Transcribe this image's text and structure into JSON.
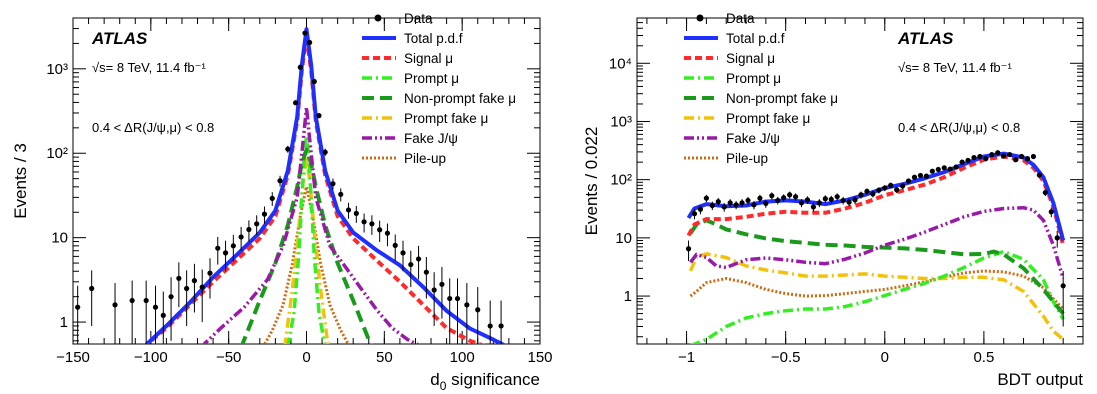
{
  "chart_data": [
    {
      "type": "line",
      "experiment": "ATLAS",
      "energy_lumi": "√s= 8 TeV, 11.4 fb⁻¹",
      "cut_label": "0.4 < ΔR(J/ψ,μ) < 0.8",
      "xlabel": "d0 significance",
      "ylabel": "Events / 3",
      "xlim": [
        -150,
        150
      ],
      "ylim": [
        0.55,
        4000
      ],
      "y_scale": "log",
      "x_ticks": [
        "−150",
        "−100",
        "−50",
        "0",
        "50",
        "100",
        "150"
      ],
      "y_ticks": [
        {
          "value": 1,
          "label": "1"
        },
        {
          "value": 10,
          "label": "10"
        },
        {
          "value": 100,
          "label": "10²"
        },
        {
          "value": 1000,
          "label": "10³"
        }
      ],
      "legend_position": "top-right",
      "legend": [
        {
          "key": "data",
          "label": "Data",
          "style": "marker",
          "color": "#000000"
        },
        {
          "key": "total",
          "label": "Total p.d.f",
          "style": "solid",
          "color": "#1f2fff"
        },
        {
          "key": "signal",
          "label": "Signal μ",
          "style": "dashed",
          "color": "#ff2a2a"
        },
        {
          "key": "prompt",
          "label": "Prompt μ",
          "style": "dashdot",
          "color": "#33ee22"
        },
        {
          "key": "nonprompt",
          "label": "Non-prompt fake μ",
          "style": "longdash",
          "color": "#1a9a1a"
        },
        {
          "key": "promptfake",
          "label": "Prompt fake μ",
          "style": "dashdot",
          "color": "#f2c20a"
        },
        {
          "key": "fakejpsi",
          "label": "Fake J/ψ",
          "style": "dashdotdot",
          "color": "#9a1aa8"
        },
        {
          "key": "pileup",
          "label": "Pile-up",
          "style": "dotted",
          "color": "#cc6a10"
        }
      ],
      "data": {
        "x": [
          -147,
          -138,
          -123,
          -112,
          -103,
          -97,
          -92,
          -87,
          -82,
          -77,
          -72,
          -67,
          -62,
          -57,
          -52,
          -47,
          -42,
          -37,
          -32,
          -27,
          -22,
          -17,
          -12,
          -7,
          -4,
          -1,
          2,
          5,
          8,
          12,
          17,
          22,
          27,
          32,
          37,
          42,
          47,
          52,
          57,
          62,
          67,
          72,
          77,
          82,
          87,
          92,
          97,
          103,
          110,
          118,
          125
        ],
        "y": [
          1.5,
          2.5,
          1.6,
          1.8,
          1.8,
          1.5,
          1.2,
          2,
          3.3,
          2.5,
          3.1,
          2.6,
          3.8,
          7.5,
          6.6,
          8,
          10.2,
          12.5,
          14.6,
          19,
          29.2,
          47.2,
          112,
          396,
          1043,
          2653,
          2050,
          708,
          279,
          103,
          43.6,
          32.6,
          21.3,
          19.4,
          15.4,
          14.6,
          12.4,
          11.3,
          8.1,
          6.6,
          4.8,
          5.6,
          3.9,
          2.4,
          2.8,
          1.9,
          1.9,
          1.6,
          1.4,
          0.9,
          0.9
        ],
        "err": [
          1.2,
          1.6,
          1.3,
          1.3,
          1.3,
          1.2,
          1.1,
          1.4,
          1.8,
          1.6,
          1.8,
          1.6,
          1.9,
          2.7,
          2.6,
          2.8,
          3.2,
          3.5,
          3.8,
          4.4,
          5.4,
          6.9,
          10.6,
          19.9,
          32.3,
          51.5,
          45.3,
          26.6,
          16.7,
          10.1,
          6.6,
          5.7,
          4.6,
          4.4,
          3.9,
          3.8,
          3.5,
          3.4,
          2.8,
          2.6,
          2.2,
          2.4,
          2,
          1.5,
          1.7,
          1.4,
          1.4,
          1.3,
          1.2,
          0.9,
          0.9
        ]
      },
      "curves": {
        "total": {
          "x": [
            -105,
            -90,
            -75,
            -60,
            -45,
            -30,
            -20,
            -12,
            -6,
            -3,
            0,
            3,
            6,
            12,
            20,
            30,
            45,
            60,
            75,
            90,
            105,
            120,
            130
          ],
          "y": [
            0.5,
            0.9,
            1.7,
            3.4,
            6.2,
            11.5,
            21,
            62,
            270,
            1100,
            2950,
            1100,
            270,
            62,
            21,
            11.5,
            7.1,
            4.7,
            2.6,
            1.36,
            0.84,
            0.62,
            0.5
          ]
        },
        "signal": {
          "x": [
            -105,
            -90,
            -75,
            -60,
            -45,
            -30,
            -20,
            -12,
            -6,
            -3,
            0,
            3,
            6,
            12,
            20,
            30,
            45,
            60,
            75,
            90,
            105,
            120
          ],
          "y": [
            0.5,
            0.85,
            1.6,
            3,
            5.4,
            9.8,
            18,
            55,
            240,
            950,
            2500,
            950,
            240,
            55,
            18,
            9.8,
            5.4,
            3,
            1.6,
            0.85,
            0.6,
            0.48
          ]
        },
        "prompt": {
          "x": [
            -12,
            -8,
            -5,
            -3,
            -1.5,
            0,
            1.5,
            3,
            5,
            8,
            12
          ],
          "y": [
            0.5,
            1.3,
            6,
            28,
            90,
            160,
            90,
            28,
            6,
            1.3,
            0.5
          ]
        },
        "nonprompt": {
          "x": [
            -42,
            -30,
            -20,
            -12,
            -6,
            -3,
            0,
            3,
            6,
            12,
            20,
            30,
            42
          ],
          "y": [
            0.5,
            1.8,
            5,
            14,
            40,
            75,
            110,
            75,
            40,
            14,
            5,
            1.8,
            0.5
          ]
        },
        "promptfake": {
          "x": [
            -14,
            -9,
            -5,
            -2,
            0,
            2,
            5,
            9,
            14
          ],
          "y": [
            0.5,
            2.5,
            12,
            50,
            85,
            50,
            12,
            2.5,
            0.5
          ]
        },
        "fakejpsi": {
          "x": [
            -68,
            -55,
            -40,
            -25,
            -15,
            -6,
            -2,
            0,
            2,
            6,
            15,
            25,
            35,
            45,
            55,
            65,
            75
          ],
          "y": [
            0.5,
            0.85,
            1.5,
            3.2,
            8,
            30,
            150,
            350,
            150,
            30,
            8,
            4.5,
            2.5,
            1.4,
            0.85,
            0.62,
            0.5
          ]
        },
        "pileup": {
          "x": [
            -28,
            -22,
            -15,
            -9,
            -4,
            0,
            4,
            9,
            15,
            22,
            28
          ],
          "y": [
            0.5,
            0.8,
            1.6,
            5,
            18,
            40,
            18,
            5,
            1.6,
            0.8,
            0.5
          ]
        }
      }
    },
    {
      "type": "line",
      "experiment": "ATLAS",
      "energy_lumi": "√s= 8 TeV, 11.4 fb⁻¹",
      "cut_label": "0.4 < ΔR(J/ψ,μ) < 0.8",
      "xlabel": "BDT output",
      "ylabel": "Events / 0.022",
      "xlim": [
        -1.25,
        1.0
      ],
      "ylim": [
        0.15,
        60000
      ],
      "y_scale": "log",
      "x_ticks": [
        "−1",
        "−0.5",
        "0",
        "0.5"
      ],
      "x_tick_values": [
        -1,
        -0.5,
        0,
        0.5
      ],
      "y_ticks": [
        {
          "value": 1,
          "label": "1"
        },
        {
          "value": 10,
          "label": "10"
        },
        {
          "value": 100,
          "label": "10²"
        },
        {
          "value": 1000,
          "label": "10³"
        },
        {
          "value": 10000,
          "label": "10⁴"
        }
      ],
      "legend_position": "top-left",
      "legend": [
        {
          "key": "data",
          "label": "Data",
          "style": "marker",
          "color": "#000000"
        },
        {
          "key": "total",
          "label": "Total p.d.f",
          "style": "solid",
          "color": "#1f2fff"
        },
        {
          "key": "signal",
          "label": "Signal μ",
          "style": "dashed",
          "color": "#ff2a2a"
        },
        {
          "key": "prompt",
          "label": "Prompt μ",
          "style": "dashdot",
          "color": "#33ee22"
        },
        {
          "key": "nonprompt",
          "label": "Non-prompt fake μ",
          "style": "longdash",
          "color": "#1a9a1a"
        },
        {
          "key": "promptfake",
          "label": "Prompt fake μ",
          "style": "dashdot",
          "color": "#f2c20a"
        },
        {
          "key": "fakejpsi",
          "label": "Fake J/ψ",
          "style": "dashdotdot",
          "color": "#9a1aa8"
        },
        {
          "key": "pileup",
          "label": "Pile-up",
          "style": "dotted",
          "color": "#cc6a10"
        }
      ],
      "data": {
        "x": [
          -0.99,
          -0.96,
          -0.93,
          -0.9,
          -0.87,
          -0.84,
          -0.81,
          -0.78,
          -0.75,
          -0.72,
          -0.69,
          -0.66,
          -0.63,
          -0.6,
          -0.57,
          -0.54,
          -0.51,
          -0.48,
          -0.45,
          -0.42,
          -0.39,
          -0.36,
          -0.33,
          -0.3,
          -0.27,
          -0.24,
          -0.21,
          -0.18,
          -0.15,
          -0.12,
          -0.09,
          -0.06,
          -0.03,
          0,
          0.03,
          0.06,
          0.09,
          0.12,
          0.15,
          0.18,
          0.21,
          0.24,
          0.27,
          0.3,
          0.33,
          0.36,
          0.39,
          0.42,
          0.45,
          0.48,
          0.51,
          0.54,
          0.57,
          0.6,
          0.63,
          0.66,
          0.69,
          0.72,
          0.75,
          0.78,
          0.81,
          0.84,
          0.87,
          0.9
        ],
        "y": [
          6.5,
          26,
          31,
          48,
          36,
          42,
          34,
          40,
          37,
          40,
          44,
          37,
          48,
          39,
          53,
          44,
          49,
          55,
          51,
          40,
          45,
          34,
          40,
          47,
          46,
          51,
          44,
          41,
          45,
          55,
          63,
          57,
          66,
          72,
          80,
          67,
          78,
          95,
          110,
          118,
          115,
          140,
          150,
          160,
          152,
          165,
          200,
          215,
          240,
          250,
          230,
          270,
          290,
          255,
          270,
          220,
          250,
          230,
          250,
          120,
          60,
          28,
          10,
          1.5
        ],
        "err": [
          2.5,
          5.1,
          5.6,
          6.9,
          6,
          6.5,
          5.8,
          6.3,
          6.1,
          6.3,
          6.6,
          6.1,
          6.9,
          6.2,
          7.3,
          6.6,
          7,
          7.4,
          7.1,
          6.3,
          6.7,
          5.8,
          6.3,
          6.9,
          6.8,
          7.1,
          6.6,
          6.4,
          6.7,
          7.4,
          7.9,
          7.5,
          8.1,
          8.5,
          8.9,
          8.2,
          8.8,
          9.7,
          10.5,
          10.9,
          10.7,
          11.8,
          12.2,
          12.6,
          12.3,
          12.8,
          14.1,
          14.7,
          15.5,
          15.8,
          15.2,
          16.4,
          17,
          16,
          16.4,
          14.8,
          15.8,
          15.2,
          15.8,
          11,
          7.7,
          5.3,
          3.2,
          1.2
        ]
      },
      "curves": {
        "total": {
          "x": [
            -0.99,
            -0.96,
            -0.9,
            -0.8,
            -0.7,
            -0.6,
            -0.5,
            -0.4,
            -0.3,
            -0.2,
            -0.1,
            0,
            0.1,
            0.2,
            0.3,
            0.4,
            0.5,
            0.6,
            0.7,
            0.75,
            0.8,
            0.85,
            0.9
          ],
          "y": [
            22,
            32,
            38,
            35,
            36,
            42,
            44,
            42,
            38,
            44,
            55,
            72,
            85,
            105,
            135,
            185,
            250,
            280,
            240,
            180,
            110,
            40,
            9
          ]
        },
        "signal": {
          "x": [
            -0.99,
            -0.96,
            -0.9,
            -0.8,
            -0.7,
            -0.6,
            -0.5,
            -0.4,
            -0.3,
            -0.2,
            -0.1,
            0,
            0.1,
            0.2,
            0.3,
            0.4,
            0.5,
            0.6,
            0.7,
            0.75,
            0.8,
            0.85,
            0.9
          ],
          "y": [
            11,
            17,
            21,
            21,
            23,
            26,
            28,
            27,
            27,
            32,
            40,
            54,
            66,
            82,
            110,
            160,
            220,
            250,
            215,
            160,
            95,
            35,
            7.5
          ]
        },
        "prompt": {
          "x": [
            -0.98,
            -0.9,
            -0.8,
            -0.7,
            -0.6,
            -0.5,
            -0.4,
            -0.3,
            -0.2,
            -0.1,
            0,
            0.1,
            0.2,
            0.3,
            0.4,
            0.5,
            0.6,
            0.7,
            0.8,
            0.85,
            0.9
          ],
          "y": [
            0.14,
            0.18,
            0.3,
            0.42,
            0.5,
            0.56,
            0.6,
            0.6,
            0.66,
            0.8,
            1.02,
            1.3,
            1.65,
            2.2,
            3.1,
            4.5,
            5.8,
            4.3,
            1.9,
            0.8,
            0.4
          ]
        },
        "nonprompt": {
          "x": [
            -0.98,
            -0.95,
            -0.9,
            -0.85,
            -0.8,
            -0.7,
            -0.6,
            -0.5,
            -0.4,
            -0.3,
            -0.2,
            -0.1,
            0,
            0.1,
            0.2,
            0.3,
            0.4,
            0.5,
            0.55,
            0.6,
            0.7,
            0.8,
            0.85,
            0.9
          ],
          "y": [
            12,
            17,
            20,
            17,
            14,
            11.5,
            9.8,
            8.8,
            8.2,
            7.6,
            7.4,
            7,
            6.8,
            6.6,
            6.2,
            5.7,
            5.2,
            5.3,
            5.8,
            5.2,
            3,
            1.3,
            0.8,
            0.5
          ]
        },
        "promptfake": {
          "x": [
            -0.98,
            -0.95,
            -0.9,
            -0.8,
            -0.7,
            -0.6,
            -0.5,
            -0.4,
            -0.3,
            -0.2,
            -0.1,
            0,
            0.1,
            0.2,
            0.3,
            0.4,
            0.5,
            0.6,
            0.7,
            0.8,
            0.85,
            0.9
          ],
          "y": [
            2.7,
            4.7,
            5.3,
            4.6,
            3.3,
            2.8,
            2.5,
            2.2,
            2.2,
            2.3,
            2.4,
            2.2,
            2.1,
            2,
            2,
            2.1,
            2.1,
            1.9,
            1.2,
            0.45,
            0.25,
            0.18
          ]
        },
        "fakejpsi": {
          "x": [
            -0.98,
            -0.95,
            -0.9,
            -0.85,
            -0.8,
            -0.7,
            -0.6,
            -0.5,
            -0.4,
            -0.3,
            -0.2,
            -0.1,
            0,
            0.1,
            0.2,
            0.3,
            0.4,
            0.5,
            0.6,
            0.7,
            0.75,
            0.8,
            0.85,
            0.9
          ],
          "y": [
            3.8,
            5.2,
            4.6,
            3.3,
            3.1,
            4.2,
            4.5,
            4.2,
            3.8,
            3.6,
            4.3,
            5.5,
            7.5,
            9.5,
            12.5,
            17,
            23,
            28.5,
            32,
            33,
            30,
            20,
            7.5,
            2
          ]
        },
        "pileup": {
          "x": [
            -0.98,
            -0.95,
            -0.9,
            -0.8,
            -0.7,
            -0.6,
            -0.5,
            -0.4,
            -0.3,
            -0.2,
            -0.1,
            0,
            0.1,
            0.2,
            0.3,
            0.4,
            0.5,
            0.6,
            0.7,
            0.8,
            0.85,
            0.9
          ],
          "y": [
            1,
            1.2,
            1.7,
            2,
            1.7,
            1.3,
            1.1,
            1.0,
            1.02,
            1.1,
            1.2,
            1.3,
            1.5,
            1.75,
            2.1,
            2.5,
            2.7,
            2.6,
            2.2,
            1.4,
            0.9,
            0.6
          ]
        }
      }
    }
  ]
}
